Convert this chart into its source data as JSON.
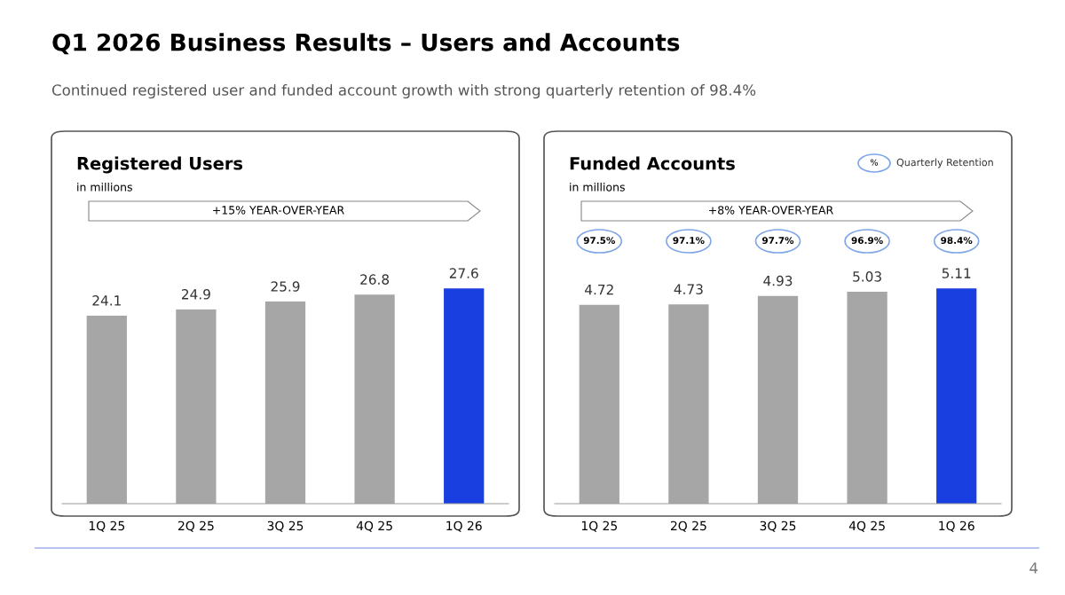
{
  "chart_data": [
    {
      "type": "bar",
      "title": "Registered Users",
      "subtitle": "in millions",
      "categories": [
        "1Q 25",
        "2Q 25",
        "3Q 25",
        "4Q 25",
        "1Q 26"
      ],
      "values": [
        24.1,
        24.9,
        25.9,
        26.8,
        27.6
      ],
      "colors": [
        "#a6a6a6",
        "#a6a6a6",
        "#a6a6a6",
        "#a6a6a6",
        "#1a3fe0"
      ],
      "data_labels": true,
      "annotations": [
        "Q1 2026 Business Results – Users and Accounts",
        "Continued registered user and funded account growth with strong quarterly retention of 98.4%",
        "+15% YEAR-OVER-YEAR",
        "4"
      ]
    },
    {
      "type": "bar",
      "title": "Funded Accounts",
      "subtitle": "in millions",
      "categories": [
        "1Q 25",
        "2Q 25",
        "3Q 25",
        "4Q 25",
        "1Q 26"
      ],
      "values": [
        4.72,
        4.73,
        4.93,
        5.03,
        5.11
      ],
      "colors": [
        "#a6a6a6",
        "#a6a6a6",
        "#a6a6a6",
        "#a6a6a6",
        "#1a3fe0"
      ],
      "data_labels": true,
      "annotations": [
        "+8% YEAR-OVER-YEAR",
        "% Quarterly Retention",
        "97.5%",
        "97.1%",
        "97.7%",
        "96.9%",
        "98.4%"
      ]
    }
  ]
}
